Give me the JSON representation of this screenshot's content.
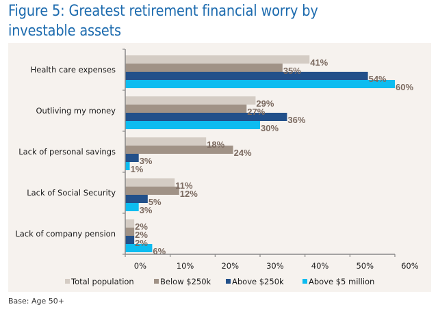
{
  "header": {
    "title": "Figure 5: Greatest retirement financial worry by investable assets"
  },
  "footer": {
    "base_note": "Base: Age 50+"
  },
  "chart_data": {
    "type": "bar",
    "orientation": "horizontal",
    "title": "Figure 5: Greatest retirement financial worry by investable assets",
    "xlabel": "",
    "ylabel": "",
    "xlim": [
      0,
      60
    ],
    "x_ticks": [
      0,
      10,
      20,
      30,
      40,
      50,
      60
    ],
    "x_tick_labels": [
      "0%",
      "10%",
      "20%",
      "30%",
      "40%",
      "50%",
      "60%"
    ],
    "grid": false,
    "legend_position": "bottom",
    "categories": [
      "Health care expenses",
      "Outliving my money",
      "Lack of personal savings",
      "Lack of Social Security",
      "Lack of company pension"
    ],
    "series": [
      {
        "name": "Total population",
        "color": "#D4CCC4",
        "values": [
          41,
          29,
          18,
          11,
          2
        ]
      },
      {
        "name": "Below $250k",
        "color": "#A09286",
        "values": [
          35,
          27,
          24,
          12,
          2
        ]
      },
      {
        "name": "Above $250k",
        "color": "#22508A",
        "values": [
          54,
          36,
          3,
          5,
          2
        ]
      },
      {
        "name": "Above $5 million",
        "color": "#0DBCF0",
        "values": [
          60,
          30,
          1,
          3,
          6
        ]
      }
    ],
    "value_label_suffix": "%"
  }
}
